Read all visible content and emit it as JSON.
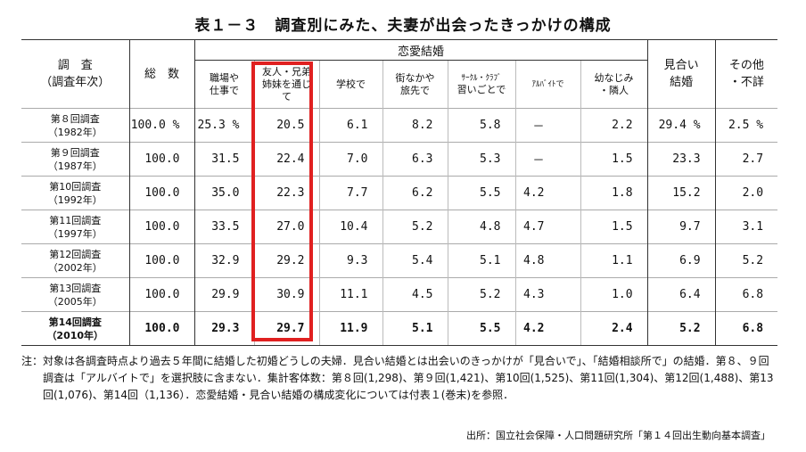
{
  "title": "表１－３　調査別にみた、夫妻が出会ったきっかけの構成",
  "table": {
    "survey_header_1": "調　査",
    "survey_header_2": "（調査年次）",
    "total_header": "総　数",
    "group_header": "恋愛結婚",
    "col_work_1": "職場や",
    "col_work_2": "仕事で",
    "col_friend_1": "友人・兄弟",
    "col_friend_2": "姉妹を通じ",
    "col_friend_3": "て",
    "col_school": "学校で",
    "col_town_1": "街なかや",
    "col_town_2": "旅先で",
    "col_circle_1": "ｻｰｸﾙ・ｸﾗﾌﾞ",
    "col_circle_2": "習いごとで",
    "col_parttime": "ｱﾙﾊﾞｲﾄで",
    "col_child_1": "幼なじみ",
    "col_child_2": "・隣人",
    "col_arranged_1": "見合い",
    "col_arranged_2": "結婚",
    "col_other_1": "その他",
    "col_other_2": "・不詳",
    "rows": [
      {
        "name": "第８回調査",
        "year": "（1982年）",
        "total": "100.0 %",
        "work": "25.3 %",
        "friend": "20.5",
        "school": "6.1",
        "town": "8.2",
        "circle": "5.8",
        "parttime": "－",
        "child": "2.2",
        "arranged": "29.4 %",
        "other": "2.5 %"
      },
      {
        "name": "第９回調査",
        "year": "（1987年）",
        "total": "100.0",
        "work": "31.5",
        "friend": "22.4",
        "school": "7.0",
        "town": "6.3",
        "circle": "5.3",
        "parttime": "－",
        "child": "1.5",
        "arranged": "23.3",
        "other": "2.7"
      },
      {
        "name": "第10回調査",
        "year": "（1992年）",
        "total": "100.0",
        "work": "35.0",
        "friend": "22.3",
        "school": "7.7",
        "town": "6.2",
        "circle": "5.5",
        "parttime": "4.2",
        "child": "1.8",
        "arranged": "15.2",
        "other": "2.0"
      },
      {
        "name": "第11回調査",
        "year": "（1997年）",
        "total": "100.0",
        "work": "33.5",
        "friend": "27.0",
        "school": "10.4",
        "town": "5.2",
        "circle": "4.8",
        "parttime": "4.7",
        "child": "1.5",
        "arranged": "9.7",
        "other": "3.1"
      },
      {
        "name": "第12回調査",
        "year": "（2002年）",
        "total": "100.0",
        "work": "32.9",
        "friend": "29.2",
        "school": "9.3",
        "town": "5.4",
        "circle": "5.1",
        "parttime": "4.8",
        "child": "1.1",
        "arranged": "6.9",
        "other": "5.2"
      },
      {
        "name": "第13回調査",
        "year": "（2005年）",
        "total": "100.0",
        "work": "29.9",
        "friend": "30.9",
        "school": "11.1",
        "town": "4.5",
        "circle": "5.2",
        "parttime": "4.3",
        "child": "1.0",
        "arranged": "6.4",
        "other": "6.8"
      },
      {
        "name": "第14回調査",
        "year": "（2010年）",
        "total": "100.0",
        "work": "29.3",
        "friend": "29.7",
        "school": "11.9",
        "town": "5.1",
        "circle": "5.5",
        "parttime": "4.2",
        "child": "2.4",
        "arranged": "5.2",
        "other": "6.8"
      }
    ]
  },
  "note": {
    "lead": "注：",
    "body": "対象は各調査時点より過去５年間に結婚した初婚どうしの夫婦．見合い結婚とは出会いのきっかけが「見合いで」、「結婚相談所で」の結婚．第８、９回調査は「アルバイトで」を選択肢に含まない．集計客体数：第８回(1,298)、第９回(1,421)、第10回(1,525)、第11回(1,304)、第12回(1,488)、第13回(1,076)、第14回（1,136）．恋愛結婚・見合い結婚の構成変化については付表１(巻末)を参照．"
  },
  "source": "出所：国立社会保障・人口問題研究所「第１４回出生動向基本調査」",
  "colors": {
    "highlight": "#e02020"
  }
}
